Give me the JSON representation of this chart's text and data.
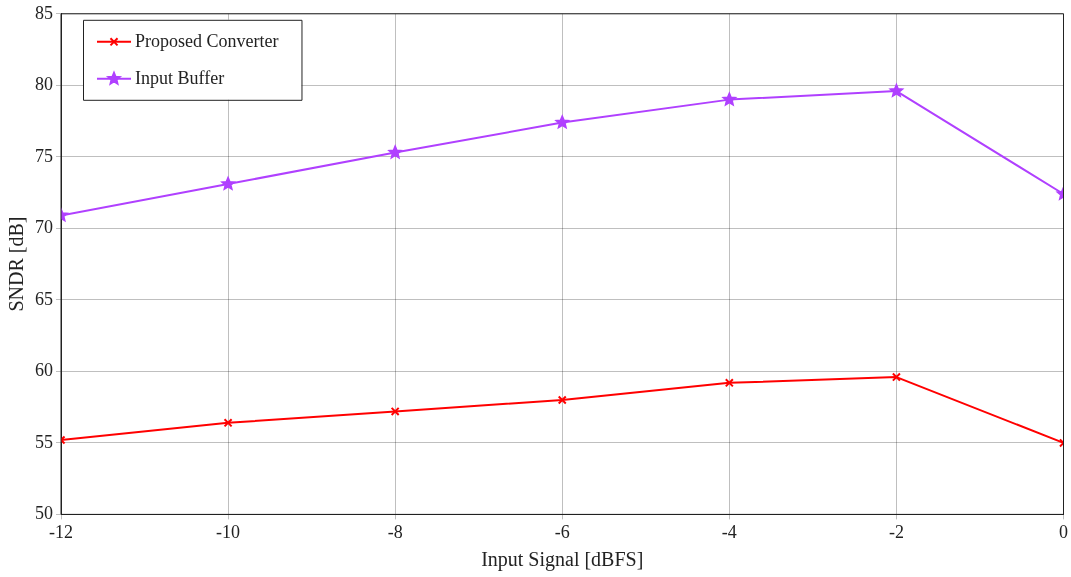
{
  "chart_data": {
    "type": "line",
    "xlabel": "Input Signal [dBFS]",
    "ylabel": "SNDR [dB]",
    "x": [
      -12,
      -10,
      -8,
      -6,
      -4,
      -2,
      0
    ],
    "series": [
      {
        "name": "Proposed Converter",
        "color": "#ff0000",
        "marker": "cross",
        "values": [
          55.2,
          56.4,
          57.2,
          58.0,
          59.2,
          59.6,
          55.0
        ]
      },
      {
        "name": "Input Buffer",
        "color": "#b040ff",
        "marker": "star",
        "values": [
          70.9,
          73.1,
          75.3,
          77.4,
          79.0,
          79.6,
          72.4
        ]
      }
    ],
    "xlim": [
      -12,
      0
    ],
    "xticks": [
      -12,
      -10,
      -8,
      -6,
      -4,
      -2,
      0
    ],
    "ylim": [
      50,
      85
    ],
    "yticks": [
      50,
      55,
      60,
      65,
      70,
      75,
      80,
      85
    ],
    "grid": true,
    "legend": "top left",
    "line_style": "solid"
  }
}
